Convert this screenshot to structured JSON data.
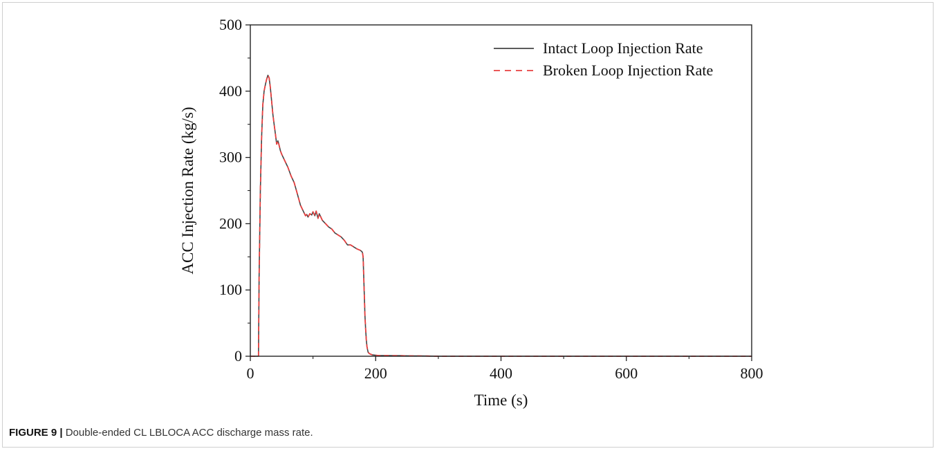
{
  "caption": {
    "figure_label": "FIGURE 9 |",
    "text": "Double-ended CL LBLOCA ACC discharge mass rate."
  },
  "chart_data": {
    "type": "line",
    "title": "",
    "xlabel": "Time (s)",
    "ylabel": "ACC Injection Rate (kg/s)",
    "xlim": [
      0,
      800
    ],
    "ylim": [
      0,
      500
    ],
    "xticks": [
      0,
      200,
      400,
      600,
      800
    ],
    "yticks": [
      0,
      100,
      200,
      300,
      400,
      500
    ],
    "grid": false,
    "legend_position": "top-right",
    "series": [
      {
        "name": "Intact Loop Injection Rate",
        "color": "#444444",
        "dash": "solid",
        "x": [
          0,
          13,
          14,
          16,
          18,
          20,
          22,
          24,
          26,
          28,
          30,
          32,
          34,
          36,
          38,
          40,
          42,
          44,
          46,
          48,
          50,
          55,
          60,
          65,
          70,
          75,
          80,
          85,
          88,
          90,
          92,
          95,
          98,
          100,
          103,
          105,
          108,
          110,
          115,
          120,
          125,
          130,
          135,
          140,
          145,
          150,
          155,
          160,
          165,
          170,
          175,
          178,
          179,
          180,
          181,
          182,
          183,
          184,
          185,
          186,
          187,
          188,
          190,
          192,
          195,
          200,
          205,
          210,
          220,
          230,
          240,
          250,
          260,
          270,
          280,
          300,
          400,
          500,
          600,
          700,
          800
        ],
        "y": [
          0,
          0,
          120,
          250,
          330,
          380,
          400,
          410,
          418,
          424,
          420,
          405,
          385,
          365,
          350,
          335,
          320,
          325,
          318,
          310,
          305,
          295,
          285,
          272,
          262,
          245,
          228,
          218,
          212,
          214,
          210,
          215,
          213,
          218,
          212,
          219,
          208,
          215,
          205,
          200,
          195,
          192,
          186,
          183,
          180,
          175,
          168,
          168,
          165,
          162,
          160,
          158,
          156,
          150,
          120,
          90,
          60,
          40,
          25,
          15,
          10,
          6,
          4,
          3,
          2,
          1.5,
          1,
          1,
          1,
          0.8,
          0.8,
          0.6,
          0.5,
          0.4,
          0.3,
          0,
          0,
          0,
          0,
          0,
          0
        ]
      },
      {
        "name": "Broken Loop Injection Rate",
        "color": "#e84040",
        "dash": "dashed",
        "x": [
          0,
          13,
          14,
          16,
          18,
          20,
          22,
          24,
          26,
          28,
          30,
          32,
          34,
          36,
          38,
          40,
          42,
          44,
          46,
          48,
          50,
          55,
          60,
          65,
          70,
          75,
          80,
          85,
          88,
          90,
          92,
          95,
          98,
          100,
          103,
          105,
          108,
          110,
          115,
          120,
          125,
          130,
          135,
          140,
          145,
          150,
          155,
          160,
          165,
          170,
          175,
          178,
          179,
          180,
          181,
          182,
          183,
          184,
          185,
          186,
          187,
          188,
          190,
          192,
          195,
          200,
          205,
          210,
          220,
          230,
          240,
          250,
          260,
          270,
          280,
          300,
          400,
          500,
          600,
          700,
          800
        ],
        "y": [
          0,
          0,
          120,
          250,
          330,
          380,
          400,
          410,
          418,
          424,
          420,
          405,
          385,
          365,
          350,
          335,
          320,
          325,
          318,
          310,
          305,
          295,
          285,
          272,
          262,
          245,
          228,
          218,
          212,
          214,
          210,
          215,
          213,
          218,
          212,
          219,
          208,
          215,
          205,
          200,
          195,
          192,
          186,
          183,
          180,
          175,
          168,
          168,
          165,
          162,
          160,
          158,
          156,
          150,
          120,
          90,
          60,
          40,
          25,
          15,
          10,
          6,
          4,
          3,
          2,
          1.5,
          1,
          1,
          1,
          0.8,
          0.8,
          0.6,
          0.5,
          0.4,
          0.3,
          0,
          0,
          0,
          0,
          0,
          0
        ]
      }
    ]
  }
}
